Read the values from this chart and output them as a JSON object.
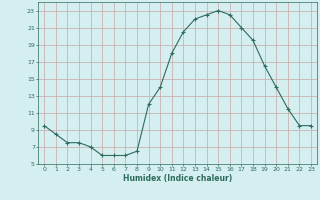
{
  "xlabel": "Humidex (Indice chaleur)",
  "x_values": [
    0,
    1,
    2,
    3,
    4,
    5,
    6,
    7,
    8,
    9,
    10,
    11,
    12,
    13,
    14,
    15,
    16,
    17,
    18,
    19,
    20,
    21,
    22,
    23
  ],
  "y_values": [
    9.5,
    8.5,
    7.5,
    7.5,
    7.0,
    6.0,
    6.0,
    6.0,
    6.5,
    12.0,
    14.0,
    18.0,
    20.5,
    22.0,
    22.5,
    23.0,
    22.5,
    21.0,
    19.5,
    16.5,
    14.0,
    11.5,
    9.5,
    9.5
  ],
  "line_color": "#2d6b5e",
  "marker": "+",
  "marker_size": 3,
  "bg_color": "#d5eef0",
  "grid_color": "#c8a8a8",
  "tick_label_color": "#2d6b5e",
  "ylim": [
    5,
    24
  ],
  "xlim": [
    -0.5,
    23.5
  ],
  "yticks": [
    5,
    7,
    9,
    11,
    13,
    15,
    17,
    19,
    21,
    23
  ],
  "xticks": [
    0,
    1,
    2,
    3,
    4,
    5,
    6,
    7,
    8,
    9,
    10,
    11,
    12,
    13,
    14,
    15,
    16,
    17,
    18,
    19,
    20,
    21,
    22,
    23
  ]
}
